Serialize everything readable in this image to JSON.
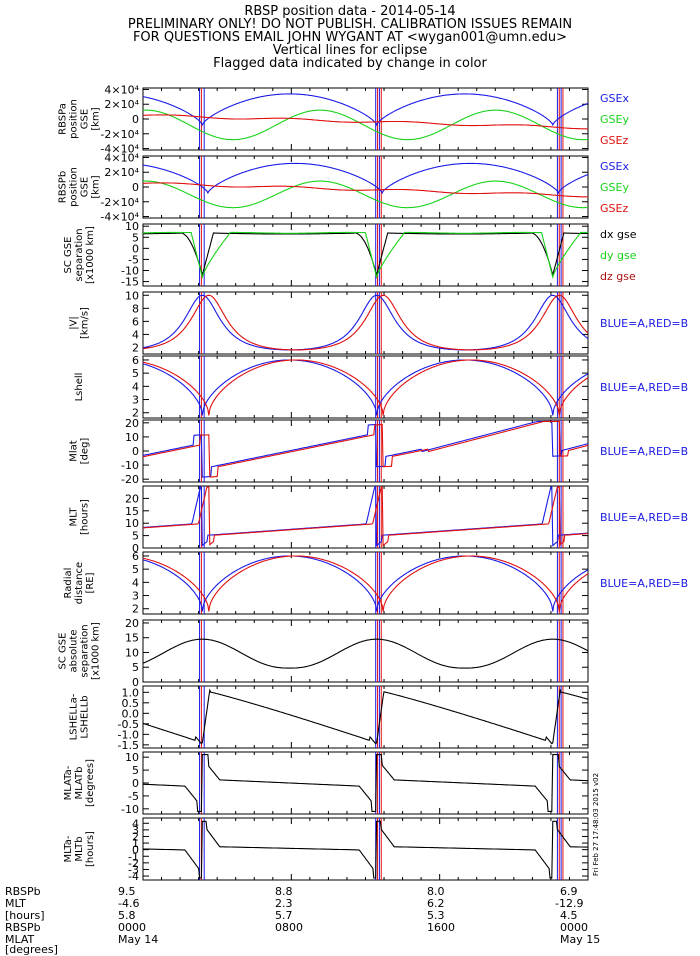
{
  "header": {
    "lines": [
      "RBSP position data - 2014-05-14",
      "PRELIMINARY ONLY! DO NOT PUBLISH. CALIBRATION ISSUES REMAIN",
      "FOR QUESTIONS EMAIL JOHN WYGANT AT <wygan001@umn.edu>",
      "Vertical lines for eclipse",
      "Flagged data indicated by change in color"
    ]
  },
  "colors": {
    "blue": "#1a1ae6",
    "red": "#e01010",
    "green": "#19d219",
    "black": "#000000",
    "darkred": "#b01010"
  },
  "eclipse_hours": [
    {
      "color": "blue",
      "hours": [
        3.05,
        3.3,
        12.55,
        12.75,
        22.35,
        22.55
      ]
    },
    {
      "color": "red",
      "hours": [
        3.15,
        12.65,
        12.85,
        22.45,
        22.65
      ]
    }
  ],
  "timestamp_note": "Fri Feb 27 17:48:03 2015 v02",
  "chart_data": [
    {
      "type": "line",
      "ylabel": [
        "RBSPa",
        "position",
        "GSE",
        "[km]"
      ],
      "yticks": [
        {
          "v": 40000,
          "t": "4×10⁴"
        },
        {
          "v": 20000,
          "t": "2×10⁴"
        },
        {
          "v": 0,
          "t": "0"
        },
        {
          "v": -20000,
          "t": "-2×10⁴"
        },
        {
          "v": -40000,
          "t": "-4×10⁴"
        }
      ],
      "ylim": [
        -42000,
        42000
      ],
      "legend": [
        {
          "text": "GSEx",
          "color": "blue"
        },
        {
          "text": "GSEy",
          "color": "green"
        },
        {
          "text": "GSEz",
          "color": "red"
        }
      ],
      "series": [
        {
          "color": "blue",
          "shape": "gsex",
          "min": -8000,
          "max": 34000
        },
        {
          "color": "green",
          "shape": "gsey",
          "min": -28000,
          "max": 12000
        },
        {
          "color": "red",
          "shape": "gsez",
          "start": 5000,
          "end": -12000
        }
      ]
    },
    {
      "type": "line",
      "ylabel": [
        "RBSPb",
        "position",
        "GSE",
        "[km]"
      ],
      "yticks": [
        {
          "v": 40000,
          "t": "4×10⁴"
        },
        {
          "v": 20000,
          "t": "2×10⁴"
        },
        {
          "v": 0,
          "t": "0"
        },
        {
          "v": -20000,
          "t": "-2×10⁴"
        },
        {
          "v": -40000,
          "t": "-4×10⁴"
        }
      ],
      "ylim": [
        -42000,
        42000
      ],
      "legend": [
        {
          "text": "GSEx",
          "color": "blue"
        },
        {
          "text": "GSEy",
          "color": "green"
        },
        {
          "text": "GSEz",
          "color": "red"
        }
      ],
      "series": [
        {
          "color": "blue",
          "shape": "gsex2",
          "min": -8000,
          "max": 32000
        },
        {
          "color": "green",
          "shape": "gsey",
          "min": -28000,
          "max": 8000
        },
        {
          "color": "red",
          "shape": "gsez",
          "start": 5000,
          "end": -12000
        }
      ]
    },
    {
      "type": "line",
      "ylabel": [
        "SC GSE",
        "separation",
        "[x1000 km]"
      ],
      "yticks": [
        {
          "v": 10,
          "t": "10"
        },
        {
          "v": 5,
          "t": "5"
        },
        {
          "v": 0,
          "t": "0"
        },
        {
          "v": -5,
          "t": "-5"
        },
        {
          "v": -10,
          "t": "-10"
        },
        {
          "v": -15,
          "t": "-15"
        }
      ],
      "ylim": [
        -17,
        11
      ],
      "legend": [
        {
          "text": "dx gse",
          "color": "black"
        },
        {
          "text": "dy gse",
          "color": "green"
        },
        {
          "text": "dz gse",
          "color": "darkred"
        }
      ],
      "series": [
        {
          "color": "black",
          "shape": "dx",
          "min": -12,
          "max": 7
        },
        {
          "color": "green",
          "shape": "dy",
          "min": -13,
          "max": 7
        }
      ]
    },
    {
      "type": "line",
      "ylabel": [
        "|V|",
        "[km/s]"
      ],
      "yticks": [
        {
          "v": 10,
          "t": "10"
        },
        {
          "v": 8,
          "t": "8"
        },
        {
          "v": 6,
          "t": "6"
        },
        {
          "v": 4,
          "t": "4"
        },
        {
          "v": 2,
          "t": "2"
        }
      ],
      "ylim": [
        1,
        10.5
      ],
      "legend": [
        {
          "text": "BLUE=A,RED=B",
          "color": "blue"
        }
      ],
      "series": [
        {
          "color": "blue",
          "shape": "speed",
          "offset": 0,
          "min": 1.6,
          "max": 10
        },
        {
          "color": "red",
          "shape": "speed",
          "offset": 0.35,
          "min": 1.6,
          "max": 10
        }
      ]
    },
    {
      "type": "line",
      "ylabel": [
        "Lshell"
      ],
      "yticks": [
        {
          "v": 6,
          "t": "6"
        },
        {
          "v": 5,
          "t": "5"
        },
        {
          "v": 4,
          "t": "4"
        },
        {
          "v": 3,
          "t": "3"
        },
        {
          "v": 2,
          "t": "2"
        }
      ],
      "ylim": [
        1.6,
        6.3
      ],
      "legend": [
        {
          "text": "BLUE=A,RED=B",
          "color": "blue"
        }
      ],
      "series": [
        {
          "color": "blue",
          "shape": "radial",
          "offset": 0,
          "min": 1.8,
          "max": 6
        },
        {
          "color": "red",
          "shape": "radial",
          "offset": 0.35,
          "min": 1.8,
          "max": 6
        }
      ]
    },
    {
      "type": "line",
      "ylabel": [
        "Mlat",
        "[deg]"
      ],
      "yticks": [
        {
          "v": 20,
          "t": "20"
        },
        {
          "v": 10,
          "t": "10"
        },
        {
          "v": 0,
          "t": "0"
        },
        {
          "v": -10,
          "t": "-10"
        },
        {
          "v": -20,
          "t": "-20"
        }
      ],
      "ylim": [
        -22,
        22
      ],
      "legend": [
        {
          "text": "BLUE=A,RED=B",
          "color": "blue"
        }
      ],
      "series": [
        {
          "color": "blue",
          "shape": "mlat",
          "offset": 0
        },
        {
          "color": "red",
          "shape": "mlat",
          "offset": 0.35
        }
      ]
    },
    {
      "type": "line",
      "ylabel": [
        "MLT",
        "[hours]"
      ],
      "yticks": [
        {
          "v": 20,
          "t": "20"
        },
        {
          "v": 15,
          "t": "15"
        },
        {
          "v": 10,
          "t": "10"
        },
        {
          "v": 5,
          "t": "5"
        },
        {
          "v": 0,
          "t": "0"
        }
      ],
      "ylim": [
        0,
        25
      ],
      "legend": [
        {
          "text": "BLUE=A,RED=B",
          "color": "blue"
        }
      ],
      "series": [
        {
          "color": "blue",
          "shape": "mlt",
          "offset": 0
        },
        {
          "color": "red",
          "shape": "mlt",
          "offset": 0.35
        }
      ]
    },
    {
      "type": "line",
      "ylabel": [
        "Radial",
        "distance",
        "[RE]"
      ],
      "yticks": [
        {
          "v": 6,
          "t": "6"
        },
        {
          "v": 5,
          "t": "5"
        },
        {
          "v": 4,
          "t": "4"
        },
        {
          "v": 3,
          "t": "3"
        },
        {
          "v": 2,
          "t": "2"
        }
      ],
      "ylim": [
        1.6,
        6.3
      ],
      "legend": [
        {
          "text": "BLUE=A,RED=B",
          "color": "blue"
        }
      ],
      "series": [
        {
          "color": "blue",
          "shape": "radial",
          "offset": 0,
          "min": 1.8,
          "max": 6
        },
        {
          "color": "red",
          "shape": "radial",
          "offset": 0.35,
          "min": 1.8,
          "max": 6
        }
      ]
    },
    {
      "type": "line",
      "ylabel": [
        "SC GSE",
        "absolute",
        "separation",
        "[x1000 km]"
      ],
      "yticks": [
        {
          "v": 20,
          "t": "20"
        },
        {
          "v": 15,
          "t": "15"
        },
        {
          "v": 10,
          "t": "10"
        },
        {
          "v": 5,
          "t": "5"
        },
        {
          "v": 0,
          "t": "0"
        }
      ],
      "ylim": [
        0,
        21
      ],
      "legend": [],
      "series": [
        {
          "color": "black",
          "shape": "sep",
          "min": 4.7,
          "max": 14.5
        }
      ]
    },
    {
      "type": "line",
      "ylabel": [
        "LSHELLa-",
        "LSHELLb"
      ],
      "yticks": [
        {
          "v": 1.0,
          "t": "1.0"
        },
        {
          "v": 0.5,
          "t": "0.5"
        },
        {
          "v": 0,
          "t": "0.0"
        },
        {
          "v": -0.5,
          "t": "-0.5"
        },
        {
          "v": -1.0,
          "t": "-1.0"
        },
        {
          "v": -1.5,
          "t": "-1.5"
        }
      ],
      "ylim": [
        -1.65,
        1.3
      ],
      "legend": [],
      "series": [
        {
          "color": "black",
          "shape": "dl"
        }
      ]
    },
    {
      "type": "line",
      "ylabel": [
        "MLATa-",
        "MLATb",
        "[degrees]"
      ],
      "yticks": [
        {
          "v": 10,
          "t": "10"
        },
        {
          "v": 5,
          "t": "5"
        },
        {
          "v": 0,
          "t": "0"
        },
        {
          "v": -5,
          "t": "-5"
        },
        {
          "v": -10,
          "t": "-10"
        }
      ],
      "ylim": [
        -12,
        12
      ],
      "legend": [],
      "series": [
        {
          "color": "black",
          "shape": "dmlat"
        }
      ]
    },
    {
      "type": "line",
      "ylabel": [
        "MLTa-",
        "MLTb",
        "[hours]"
      ],
      "yticks": [
        {
          "v": 4,
          "t": "4"
        },
        {
          "v": 3,
          "t": "3"
        },
        {
          "v": 2,
          "t": "2"
        },
        {
          "v": 1,
          "t": "1"
        },
        {
          "v": 0,
          "t": "0"
        },
        {
          "v": -1,
          "t": "-1"
        },
        {
          "v": -2,
          "t": "-2"
        },
        {
          "v": -3,
          "t": "-3"
        },
        {
          "v": -4,
          "t": "-4"
        }
      ],
      "ylim": [
        -4.6,
        4.8
      ],
      "legend": [],
      "series": [
        {
          "color": "black",
          "shape": "dmlt"
        }
      ]
    }
  ],
  "footer": {
    "labels": [
      "RBSPb",
      "MLT",
      "[hours]",
      "RBSPb",
      "MLAT",
      "[degrees]"
    ],
    "columns": [
      {
        "values": [
          "9.5",
          "-4.6",
          "5.8",
          "0000",
          "May 14"
        ]
      },
      {
        "values": [
          "8.8",
          "2.3",
          "5.7",
          "0800",
          ""
        ]
      },
      {
        "values": [
          "8.0",
          "6.2",
          "5.3",
          "1600",
          ""
        ]
      },
      {
        "values": [
          "6.9",
          "-12.9",
          "4.5",
          "0000",
          "May 15"
        ]
      }
    ]
  }
}
